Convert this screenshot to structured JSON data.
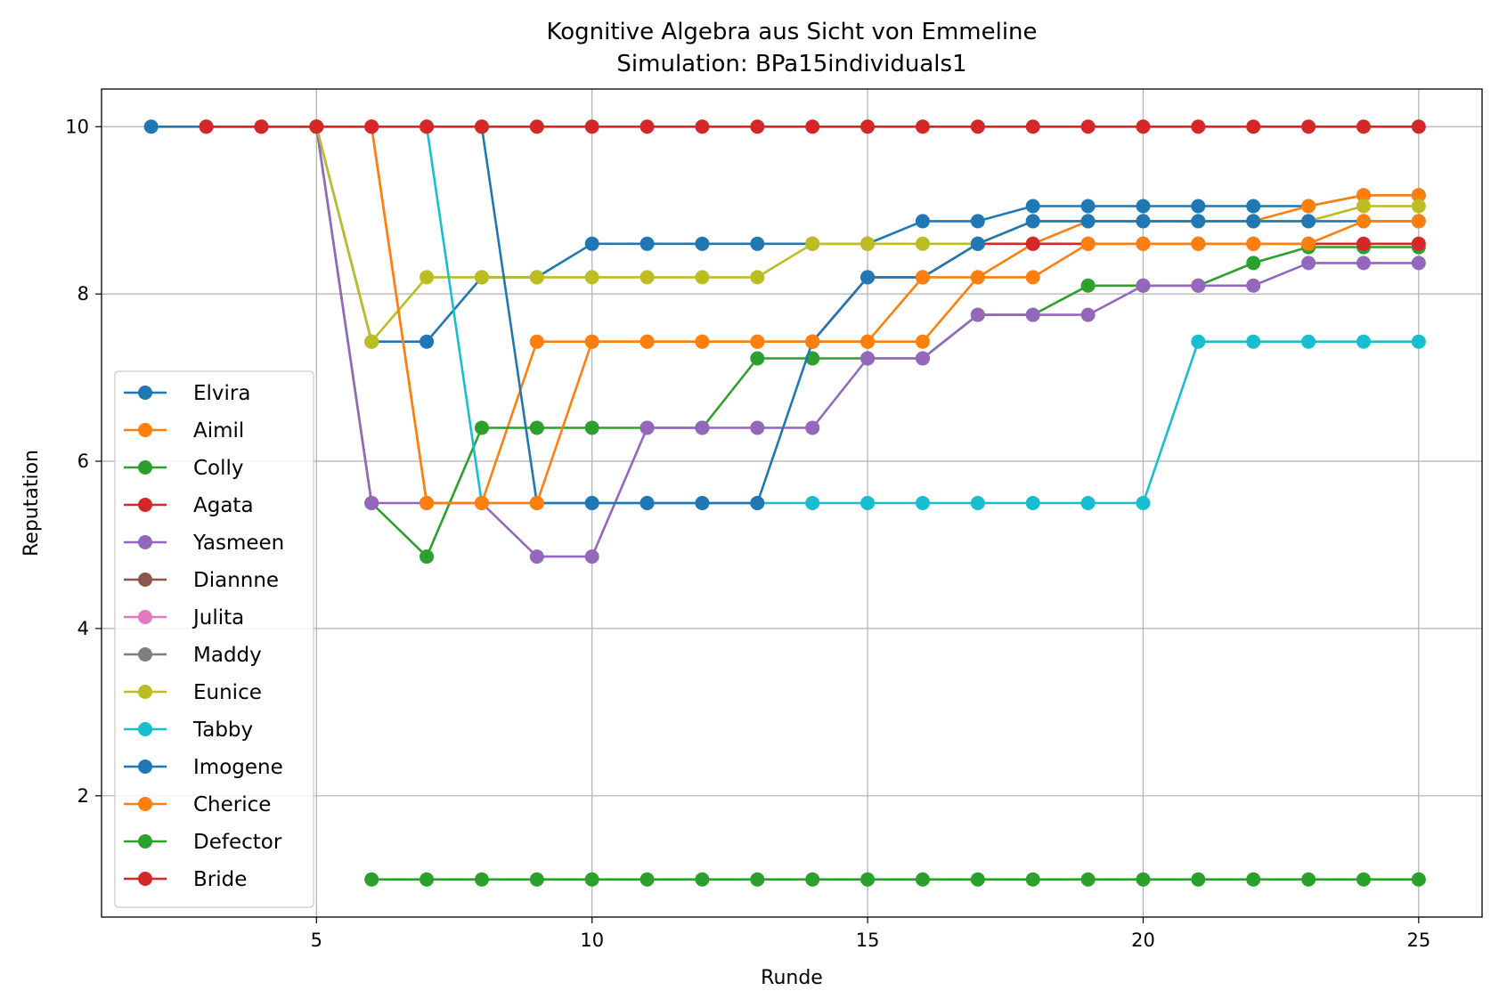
{
  "chart_data": {
    "type": "line",
    "title": "Kognitive Algebra aus Sicht von Emmeline",
    "subtitle": "Simulation: BPa15individuals1",
    "xlabel": "Runde",
    "ylabel": "Reputation",
    "xlim": [
      1.1,
      26.15
    ],
    "ylim": [
      0.55,
      10.45
    ],
    "xticks": [
      5,
      10,
      15,
      20,
      25
    ],
    "yticks": [
      2,
      4,
      6,
      8,
      10
    ],
    "grid": true,
    "legend_position": "lower-left",
    "series": [
      {
        "name": "Elvira",
        "color": "#1f77b4",
        "x": [
          2,
          3,
          4,
          5,
          6,
          7,
          8,
          9,
          10,
          11,
          12,
          13,
          14,
          15,
          16,
          17,
          18,
          19,
          20,
          21,
          22,
          23,
          24,
          25
        ],
        "y": [
          10,
          10,
          10,
          10,
          7.43,
          7.43,
          8.2,
          8.2,
          8.6,
          8.6,
          8.6,
          8.6,
          8.6,
          8.6,
          8.87,
          8.87,
          9.05,
          9.05,
          9.05,
          9.05,
          9.05,
          9.05,
          9.18,
          9.18
        ]
      },
      {
        "name": "Aimil",
        "color": "#ff7f0e",
        "x": [
          5,
          6,
          7,
          8,
          9,
          10,
          11,
          12,
          13,
          14,
          15,
          16,
          17,
          18,
          19,
          20,
          21,
          22,
          23,
          24,
          25
        ],
        "y": [
          10,
          10,
          5.5,
          5.5,
          7.43,
          7.43,
          7.43,
          7.43,
          7.43,
          7.43,
          7.43,
          7.43,
          8.2,
          8.6,
          8.87,
          8.87,
          8.87,
          8.87,
          9.05,
          9.18,
          9.18
        ]
      },
      {
        "name": "Colly",
        "color": "#2ca02c",
        "x": [
          5,
          6,
          7,
          8,
          9,
          10,
          11,
          12,
          13,
          14,
          15,
          16,
          17,
          18,
          19,
          20,
          21,
          22,
          23,
          24,
          25
        ],
        "y": [
          10,
          5.5,
          4.86,
          6.4,
          6.4,
          6.4,
          6.4,
          6.4,
          7.23,
          7.23,
          7.23,
          7.23,
          7.75,
          7.75,
          8.1,
          8.1,
          8.1,
          8.37,
          8.56,
          8.56,
          8.56
        ]
      },
      {
        "name": "Agata",
        "color": "#d62728",
        "x": [
          14,
          15,
          16,
          17,
          18,
          19,
          20,
          21,
          22,
          23,
          24,
          25
        ],
        "y": [
          7.43,
          8.2,
          8.2,
          8.6,
          8.6,
          8.6,
          8.6,
          8.6,
          8.6,
          8.6,
          8.6,
          8.6
        ]
      },
      {
        "name": "Yasmeen",
        "color": "#9467bd",
        "x": [
          5,
          6,
          7,
          8,
          9,
          10,
          11,
          12,
          13,
          14,
          15,
          16,
          17,
          18,
          19,
          20,
          21,
          22,
          23,
          24,
          25
        ],
        "y": [
          10,
          5.5,
          5.5,
          5.5,
          4.86,
          4.86,
          6.4,
          6.4,
          6.4,
          6.4,
          7.23,
          7.23,
          7.75,
          7.75,
          7.75,
          8.1,
          8.1,
          8.1,
          8.37,
          8.37,
          8.37
        ]
      },
      {
        "name": "Diannne",
        "color": "#8c564b",
        "x": [],
        "y": []
      },
      {
        "name": "Julita",
        "color": "#e377c2",
        "x": [],
        "y": []
      },
      {
        "name": "Maddy",
        "color": "#7f7f7f",
        "x": [],
        "y": []
      },
      {
        "name": "Eunice",
        "color": "#bcbd22",
        "x": [
          5,
          6,
          7,
          8,
          9,
          10,
          11,
          12,
          13,
          14,
          15,
          16,
          17,
          18,
          19,
          20,
          21,
          22,
          23,
          24,
          25
        ],
        "y": [
          10,
          7.43,
          8.2,
          8.2,
          8.2,
          8.2,
          8.2,
          8.2,
          8.2,
          8.6,
          8.6,
          8.6,
          8.6,
          8.87,
          8.87,
          8.87,
          8.87,
          8.87,
          8.87,
          9.05,
          9.05
        ]
      },
      {
        "name": "Tabby",
        "color": "#17becf",
        "x": [
          7,
          8,
          9,
          10,
          11,
          12,
          13,
          14,
          15,
          16,
          17,
          18,
          19,
          20,
          21,
          22,
          23,
          24,
          25
        ],
        "y": [
          10,
          5.5,
          5.5,
          5.5,
          5.5,
          5.5,
          5.5,
          5.5,
          5.5,
          5.5,
          5.5,
          5.5,
          5.5,
          5.5,
          7.43,
          7.43,
          7.43,
          7.43,
          7.43
        ]
      },
      {
        "name": "Imogene",
        "color": "#1f77b4",
        "x": [
          8,
          9,
          10,
          11,
          12,
          13,
          14,
          15,
          16,
          17,
          18,
          19,
          20,
          21,
          22,
          23,
          24,
          25
        ],
        "y": [
          10,
          5.5,
          5.5,
          5.5,
          5.5,
          5.5,
          7.43,
          8.2,
          8.2,
          8.6,
          8.87,
          8.87,
          8.87,
          8.87,
          8.87,
          8.87,
          8.87,
          8.87
        ]
      },
      {
        "name": "Cherice",
        "color": "#ff7f0e",
        "x": [
          6,
          7,
          8,
          9,
          10,
          11,
          12,
          13,
          14,
          15,
          16,
          17,
          18,
          19,
          20,
          21,
          22,
          23,
          24,
          25
        ],
        "y": [
          10,
          5.5,
          5.5,
          5.5,
          7.43,
          7.43,
          7.43,
          7.43,
          7.43,
          7.43,
          8.2,
          8.2,
          8.2,
          8.6,
          8.6,
          8.6,
          8.6,
          8.6,
          8.87,
          8.87
        ]
      },
      {
        "name": "Defector",
        "color": "#2ca02c",
        "x": [
          6,
          7,
          8,
          9,
          10,
          11,
          12,
          13,
          14,
          15,
          16,
          17,
          18,
          19,
          20,
          21,
          22,
          23,
          24,
          25
        ],
        "y": [
          1,
          1,
          1,
          1,
          1,
          1,
          1,
          1,
          1,
          1,
          1,
          1,
          1,
          1,
          1,
          1,
          1,
          1,
          1,
          1
        ]
      },
      {
        "name": "Bride",
        "color": "#d62728",
        "x": [
          3,
          4,
          5,
          6,
          7,
          8,
          9,
          10,
          11,
          12,
          13,
          14,
          15,
          16,
          17,
          18,
          19,
          20,
          21,
          22,
          23,
          24,
          25
        ],
        "y": [
          10,
          10,
          10,
          10,
          10,
          10,
          10,
          10,
          10,
          10,
          10,
          10,
          10,
          10,
          10,
          10,
          10,
          10,
          10,
          10,
          10,
          10,
          10
        ]
      }
    ]
  }
}
